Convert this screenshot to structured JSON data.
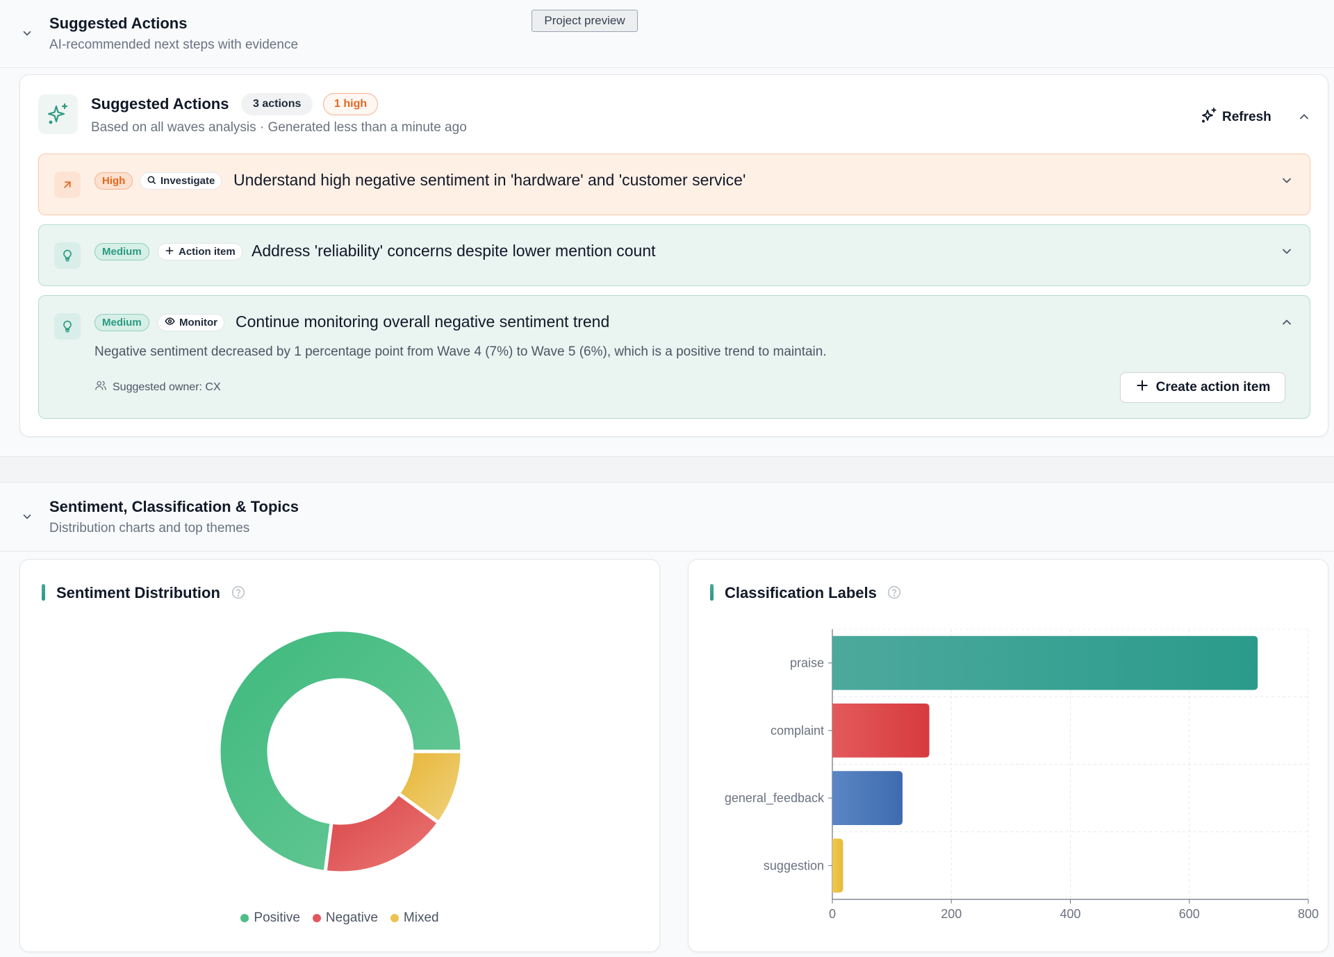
{
  "tooltip": "Project preview",
  "suggested_section": {
    "title": "Suggested Actions",
    "subtitle": "AI-recommended next steps with evidence"
  },
  "suggested_card": {
    "title": "Suggested Actions",
    "count_badge": "3 actions",
    "high_badge": "1 high",
    "subtitle": "Based on all waves analysis · Generated less than a minute ago",
    "refresh_label": "Refresh"
  },
  "actions": [
    {
      "priority": "High",
      "kind": "Investigate",
      "kind_icon": "search-icon",
      "title": "Understand high negative sentiment in 'hardware' and 'customer service'",
      "icon": "arrow-up-right-icon",
      "expanded": false
    },
    {
      "priority": "Medium",
      "kind": "Action item",
      "kind_icon": "plus-icon",
      "title": "Address 'reliability' concerns despite lower mention count",
      "icon": "lightbulb-icon",
      "expanded": false
    },
    {
      "priority": "Medium",
      "kind": "Monitor",
      "kind_icon": "eye-icon",
      "title": "Continue monitoring overall negative sentiment trend",
      "icon": "lightbulb-icon",
      "expanded": true,
      "description": "Negative sentiment decreased by 1 percentage point from Wave 4 (7%) to Wave 5 (6%), which is a positive trend to maintain.",
      "owner": "Suggested owner: CX",
      "create_label": "Create action item"
    }
  ],
  "charts_section": {
    "title": "Sentiment, Classification & Topics",
    "subtitle": "Distribution charts and top themes"
  },
  "sentiment_card": {
    "title": "Sentiment Distribution"
  },
  "classification_card": {
    "title": "Classification Labels"
  },
  "colors": {
    "positive": "#4cbd86",
    "negative": "#e0585c",
    "mixed": "#ebc254",
    "praise": "#34a08f",
    "complaint": "#dd4346",
    "general_feedback": "#4473b6",
    "suggestion": "#ebc254",
    "accent": "#2b9a80",
    "high": "#e5671f"
  },
  "chart_data": [
    {
      "type": "pie",
      "title": "Sentiment Distribution",
      "categories": [
        "Positive",
        "Negative",
        "Mixed"
      ],
      "values": [
        73,
        17,
        10
      ],
      "donut": true,
      "legend": "bottom"
    },
    {
      "type": "bar",
      "orientation": "horizontal",
      "title": "Classification Labels",
      "categories": [
        "praise",
        "complaint",
        "general_feedback",
        "suggestion"
      ],
      "values": [
        715,
        163,
        118,
        18
      ],
      "xlim": [
        0,
        800
      ],
      "xticks": [
        "0",
        "200",
        "400",
        "600",
        "800"
      ],
      "grid": true
    }
  ]
}
